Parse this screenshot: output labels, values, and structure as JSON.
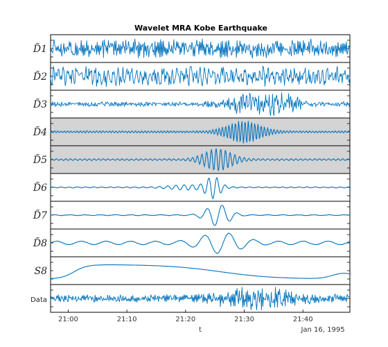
{
  "chart_data": {
    "type": "line",
    "title": "Wavelet MRA Kobe Earthquake",
    "xlabel": "t",
    "date_label": "Jan 16, 1995",
    "x_ticks": [
      "21:00",
      "21:10",
      "21:20",
      "21:30",
      "21:40"
    ],
    "x_range": [
      "20:57",
      "21:48"
    ],
    "series_color": "#0072BD",
    "highlight_color": "#d4d4d4",
    "grid": false,
    "series": [
      {
        "name": "D̃1",
        "highlighted": false,
        "description": "high-frequency noise throughout"
      },
      {
        "name": "D̃2",
        "highlighted": false,
        "description": "high-frequency noise throughout"
      },
      {
        "name": "D̃3",
        "highlighted": false,
        "description": "noise with burst near 21:30-21:37"
      },
      {
        "name": "D̃4",
        "highlighted": true,
        "description": "oscillation burst centered near 21:30"
      },
      {
        "name": "D̃5",
        "highlighted": true,
        "description": "oscillation burst centered near 21:25"
      },
      {
        "name": "D̃6",
        "highlighted": false,
        "description": "wave packet centered near 21:25"
      },
      {
        "name": "D̃7",
        "highlighted": false,
        "description": "slow oscillation peaking near 21:26"
      },
      {
        "name": "D̃8",
        "highlighted": false,
        "description": "slow oscillation peaking near 21:27"
      },
      {
        "name": "S8",
        "highlighted": false,
        "description": "smooth trend, high near 21:03, decaying"
      },
      {
        "name": "Data",
        "highlighted": false,
        "description": "raw seismograph signal"
      }
    ]
  }
}
